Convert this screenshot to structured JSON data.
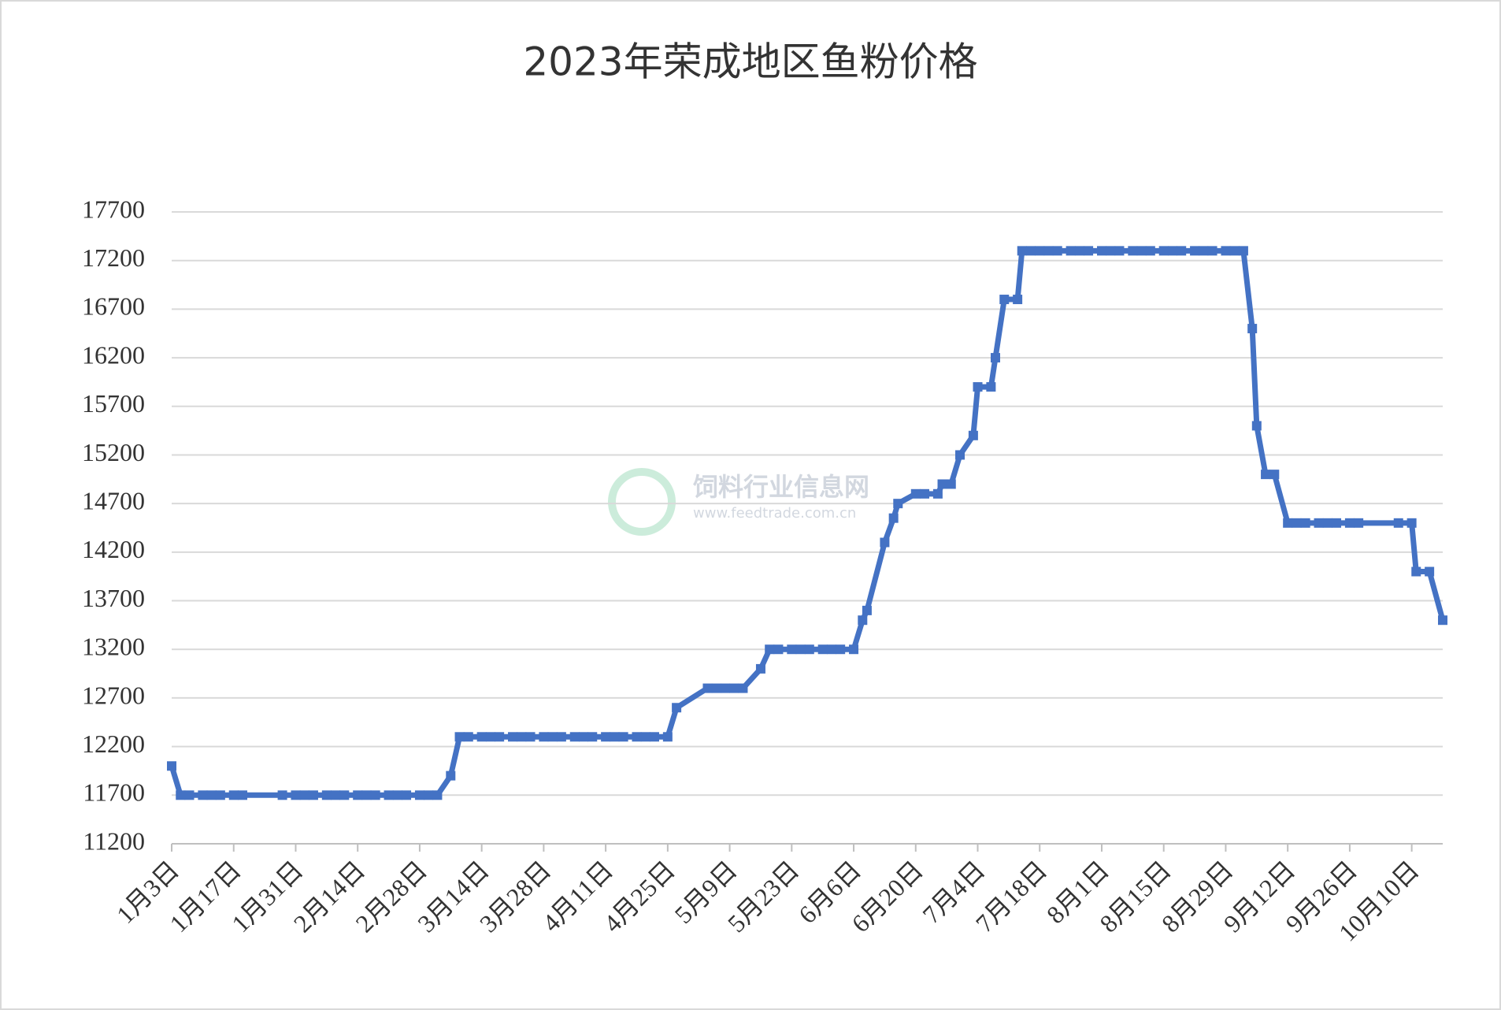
{
  "chart_data": {
    "type": "line",
    "title": "2023年荣成地区鱼粉价格",
    "watermark": [
      "饲料行业信息网",
      "www.feedtrade.com.cn"
    ],
    "x": [
      3,
      5,
      7,
      10,
      12,
      14,
      17,
      19,
      28,
      31,
      33,
      35,
      38,
      40,
      42,
      45,
      47,
      49,
      52,
      54,
      56,
      59,
      61,
      63,
      66,
      68,
      70,
      73,
      75,
      77,
      80,
      82,
      84,
      87,
      89,
      91,
      94,
      96,
      98,
      101,
      103,
      105,
      108,
      110,
      112,
      115,
      117,
      124,
      126,
      128,
      130,
      132,
      136,
      138,
      140,
      143,
      145,
      147,
      150,
      152,
      154,
      157,
      159,
      160,
      164,
      166,
      167,
      171,
      173,
      176,
      177,
      179,
      181,
      184,
      185,
      188,
      189,
      191,
      194,
      195,
      197,
      199,
      201,
      203,
      206,
      208,
      210,
      213,
      215,
      217,
      220,
      222,
      224,
      227,
      229,
      231,
      234,
      236,
      238,
      241,
      243,
      245,
      247,
      248,
      250,
      252,
      255,
      257,
      259,
      262,
      264,
      266,
      269,
      271,
      280,
      283,
      284,
      287,
      290
    ],
    "series": [
      {
        "color": "#4472c4",
        "values": [
          12000,
          11700,
          11700,
          11700,
          11700,
          11700,
          11700,
          11700,
          11700,
          11700,
          11700,
          11700,
          11700,
          11700,
          11700,
          11700,
          11700,
          11700,
          11700,
          11700,
          11700,
          11700,
          11700,
          11700,
          11900,
          12300,
          12300,
          12300,
          12300,
          12300,
          12300,
          12300,
          12300,
          12300,
          12300,
          12300,
          12300,
          12300,
          12300,
          12300,
          12300,
          12300,
          12300,
          12300,
          12300,
          12300,
          12600,
          12800,
          12800,
          12800,
          12800,
          12800,
          13000,
          13200,
          13200,
          13200,
          13200,
          13200,
          13200,
          13200,
          13200,
          13200,
          13500,
          13600,
          14300,
          14550,
          14700,
          14800,
          14800,
          14800,
          14900,
          14900,
          15200,
          15400,
          15900,
          15900,
          16200,
          16800,
          16800,
          17300,
          17300,
          17300,
          17300,
          17300,
          17300,
          17300,
          17300,
          17300,
          17300,
          17300,
          17300,
          17300,
          17300,
          17300,
          17300,
          17300,
          17300,
          17300,
          17300,
          17300,
          17300,
          17300,
          16500,
          15500,
          15000,
          15000,
          14500,
          14500,
          14500,
          14500,
          14500,
          14500,
          14500,
          14500,
          14500,
          14500,
          14000,
          14000,
          13500
        ]
      }
    ],
    "xlim": [
      3,
      290
    ],
    "xticks": [
      {
        "value": 3,
        "label": "1月3日"
      },
      {
        "value": 17,
        "label": "1月17日"
      },
      {
        "value": 31,
        "label": "1月31日"
      },
      {
        "value": 45,
        "label": "2月14日"
      },
      {
        "value": 59,
        "label": "2月28日"
      },
      {
        "value": 73,
        "label": "3月14日"
      },
      {
        "value": 87,
        "label": "3月28日"
      },
      {
        "value": 101,
        "label": "4月11日"
      },
      {
        "value": 115,
        "label": "4月25日"
      },
      {
        "value": 129,
        "label": "5月9日"
      },
      {
        "value": 143,
        "label": "5月23日"
      },
      {
        "value": 157,
        "label": "6月6日"
      },
      {
        "value": 171,
        "label": "6月20日"
      },
      {
        "value": 185,
        "label": "7月4日"
      },
      {
        "value": 199,
        "label": "7月18日"
      },
      {
        "value": 213,
        "label": "8月1日"
      },
      {
        "value": 227,
        "label": "8月15日"
      },
      {
        "value": 241,
        "label": "8月29日"
      },
      {
        "value": 255,
        "label": "9月12日"
      },
      {
        "value": 269,
        "label": "9月26日"
      },
      {
        "value": 283,
        "label": "10月10日"
      }
    ],
    "ylim": [
      11200,
      17700
    ],
    "yticks": [
      11200,
      11700,
      12200,
      12700,
      13200,
      13700,
      14200,
      14700,
      15200,
      15700,
      16200,
      16700,
      17200,
      17700
    ],
    "grid": true
  }
}
